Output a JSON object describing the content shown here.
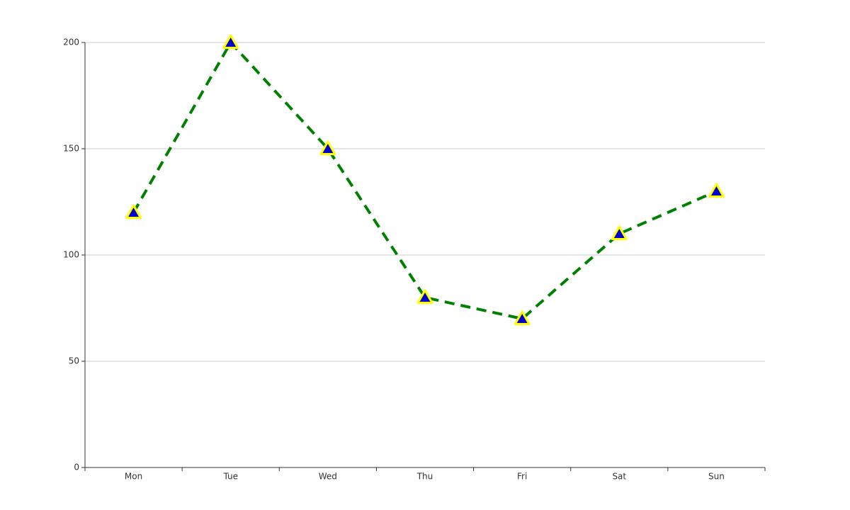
{
  "chart_data": {
    "type": "line",
    "categories": [
      "Mon",
      "Tue",
      "Wed",
      "Thu",
      "Fri",
      "Sat",
      "Sun"
    ],
    "values": [
      120,
      200,
      150,
      80,
      70,
      110,
      130
    ],
    "color": "#008000",
    "line_style": "dashed",
    "marker": "triangle",
    "marker_color": "#0000cd",
    "marker_border_color": "#ffff00",
    "ylim": [
      0,
      200
    ],
    "yticks": [
      0,
      50,
      100,
      150,
      200
    ],
    "grid": true
  }
}
